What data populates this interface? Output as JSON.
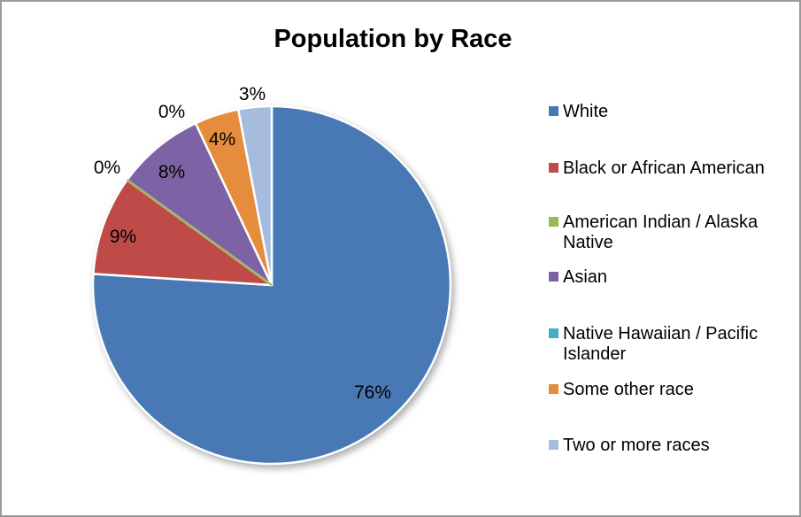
{
  "frame": {
    "border_color": "#9B9B9B",
    "background_color": "#FFFFFF"
  },
  "chart_data": {
    "type": "pie",
    "title": "Population by Race",
    "categories": [
      "White",
      "Black or African American",
      "American Indian / Alaska Native",
      "Asian",
      "Native Hawaiian / Pacific Islander",
      "Some other race",
      "Two or more races"
    ],
    "values": [
      76,
      9,
      0,
      8,
      0,
      4,
      3
    ],
    "data_labels": [
      "76%",
      "9%",
      "0%",
      "8%",
      "0%",
      "4%",
      "3%"
    ],
    "colors": [
      "#4879B4",
      "#BE4B48",
      "#98B954",
      "#7D63A5",
      "#45ABC7",
      "#E68C3D",
      "#A5BCDF"
    ],
    "slice_border_color": "#FFFFFF",
    "label_color": "#000000",
    "legend_position": "right",
    "start_angle_deg": 0,
    "direction": "clockwise",
    "zero_sliver_indices": [
      2
    ],
    "zero_sliver_stroke_px": 2.2
  }
}
